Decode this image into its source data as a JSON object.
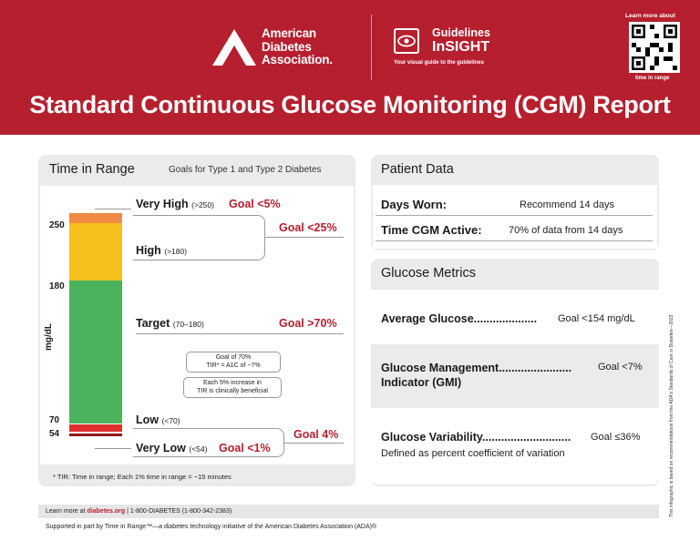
{
  "header": {
    "org_name_line1": "American",
    "org_name_line2": "Diabetes",
    "org_name_line3": "Association.",
    "guidelines_line1": "Guidelines",
    "guidelines_line2": "InSIGHT",
    "guidelines_sub": "Your visual guide to the guidelines",
    "learn_more": "Learn more about",
    "qr_label": "time in range",
    "title": "Standard Continuous Glucose Monitoring (CGM) Report",
    "brand_color": "#b51f2e"
  },
  "time_in_range": {
    "title": "Time in Range",
    "subtitle": "Goals for Type 1 and Type 2 Diabetes",
    "axis_unit": "mg/dL",
    "axis_values": [
      "250",
      "180",
      "70",
      "54"
    ],
    "ranges": [
      {
        "name": "Very High",
        "threshold": "(>250)",
        "goal": "Goal <5%",
        "color": "#f08a45"
      },
      {
        "name": "High",
        "threshold": "(>180)",
        "color": "#f6c01c"
      },
      {
        "name": "Target",
        "threshold": "(70–180)",
        "goal": "Goal >70%",
        "color": "#4cb35c"
      },
      {
        "name": "Low",
        "threshold": "(<70)",
        "color": "#e0312f"
      },
      {
        "name": "Very Low",
        "threshold": "(<54)",
        "goal": "Goal <1%",
        "color": "#8b1a1a"
      }
    ],
    "combined_high_goal": "Goal <25%",
    "combined_low_goal": "Goal 4%",
    "note1_line1": "Goal of 70%",
    "note1_line2": "TIR* = A1C of ~7%",
    "note2_line1": "Each 5% increase in",
    "note2_line2": "TIR is clinically beneficial",
    "footnote": "* TIR: Time in range; Each 1% time in range = ~15 minutes"
  },
  "patient_data": {
    "title": "Patient Data",
    "days_worn_label": "Days Worn:",
    "days_worn_value": "Recommend 14 days",
    "active_label": "Time CGM Active:",
    "active_value": "70% of data from 14 days"
  },
  "glucose_metrics": {
    "title": "Glucose Metrics",
    "avg_label": "Average Glucose....................",
    "avg_goal": "Goal <154 mg/dL",
    "gmi_label_line1": "Glucose Management.......................",
    "gmi_label_line2": "Indicator (GMI)",
    "gmi_goal": "Goal <7%",
    "var_label": "Glucose Variability............................",
    "var_goal": "Goal ≤36%",
    "var_desc": "Defined as percent coefficient of variation"
  },
  "side_note": "This infographic is based on recommendations from the ADA's Standards of Care in Diabetes—2023",
  "footer": {
    "learn_prefix": "Learn more at",
    "link": "diabetes.org",
    "phone": "|   1-800-DIABETES (1-800-342-2383)",
    "support": "Supported in part by Time in Range™—a diabetes technology initiative of the American Diabetes Association (ADA)®"
  }
}
